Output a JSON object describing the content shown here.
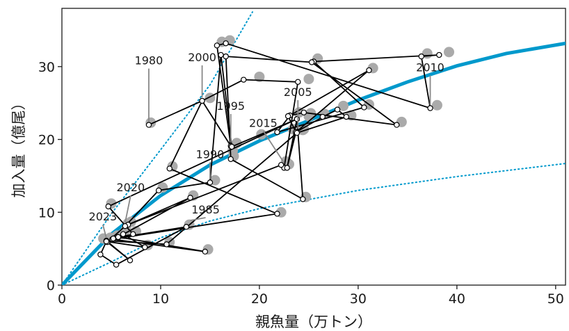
{
  "chart_data": {
    "type": "scatter",
    "xlabel": "親魚量（万トン）",
    "ylabel": "加入量（億尾）",
    "xlim": [
      0,
      51
    ],
    "ylim": [
      0,
      38
    ],
    "x_ticks": [
      0,
      10,
      20,
      30,
      40,
      50
    ],
    "y_ticks": [
      0,
      10,
      20,
      30
    ],
    "grid": false,
    "colors": {
      "fit_curve": "#0099cc",
      "prediction_points": "#aaaaaa",
      "trajectory": "#000000"
    },
    "fit_curve": {
      "points": [
        [
          0,
          0
        ],
        [
          5,
          7.0
        ],
        [
          10,
          12.3
        ],
        [
          15,
          16.5
        ],
        [
          20,
          19.8
        ],
        [
          25,
          22.6
        ],
        [
          30,
          25.4
        ],
        [
          35,
          27.9
        ],
        [
          40,
          30.1
        ],
        [
          45,
          31.8
        ],
        [
          51,
          33.2
        ]
      ]
    },
    "upper_bound": {
      "points": [
        [
          0,
          0
        ],
        [
          5,
          9.8
        ],
        [
          10,
          18.6
        ],
        [
          15,
          27.5
        ],
        [
          19.3,
          37.5
        ]
      ]
    },
    "lower_bound": {
      "points": [
        [
          0,
          0
        ],
        [
          5,
          3.2
        ],
        [
          10,
          6.5
        ],
        [
          15,
          8.8
        ],
        [
          20,
          10.5
        ],
        [
          30,
          13.0
        ],
        [
          40,
          14.9
        ],
        [
          51,
          16.7
        ]
      ]
    },
    "series": [
      {
        "points": [
          [
            8.8,
            22.0
          ],
          [
            14.2,
            25.3
          ],
          [
            18.4,
            28.2
          ],
          [
            23.9,
            27.9
          ],
          [
            22.5,
            16.1
          ],
          [
            22.2,
            16.5
          ],
          [
            6.7,
            8.3
          ],
          [
            13.0,
            12.0
          ],
          [
            5.7,
            6.6
          ],
          [
            14.5,
            4.6
          ],
          [
            5.1,
            6.3
          ],
          [
            21.8,
            9.8
          ],
          [
            10.9,
            16.0
          ],
          [
            14.2,
            25.3
          ],
          [
            17.1,
            19.1
          ],
          [
            15.7,
            32.9
          ],
          [
            16.6,
            33.2
          ],
          [
            37.3,
            24.3
          ],
          [
            36.4,
            31.4
          ],
          [
            38.2,
            31.6
          ],
          [
            25.5,
            30.7
          ],
          [
            30.6,
            24.4
          ],
          [
            21.8,
            21.0
          ],
          [
            23.1,
            23.3
          ],
          [
            31.1,
            29.5
          ],
          [
            23.7,
            21.0
          ],
          [
            22.9,
            23.2
          ],
          [
            24.5,
            23.7
          ],
          [
            33.9,
            22.0
          ],
          [
            25.3,
            30.6
          ],
          [
            16.6,
            31.4
          ],
          [
            17.1,
            17.3
          ],
          [
            24.4,
            11.8
          ],
          [
            23.8,
            22.8
          ],
          [
            22.8,
            16.1
          ],
          [
            23.7,
            21.0
          ],
          [
            26.4,
            23.1
          ],
          [
            27.9,
            24.1
          ],
          [
            28.8,
            23.1
          ],
          [
            23.8,
            20.9
          ],
          [
            10.6,
            5.6
          ],
          [
            4.5,
            6.1
          ],
          [
            6.9,
            3.4
          ],
          [
            4.6,
            5.9
          ],
          [
            6.4,
            8.1
          ],
          [
            9.8,
            13.0
          ],
          [
            15.0,
            14.1
          ],
          [
            16.1,
            31.6
          ],
          [
            17.2,
            19.0
          ],
          [
            23.8,
            22.8
          ],
          [
            4.7,
            10.8
          ],
          [
            7.2,
            7.0
          ],
          [
            5.2,
            6.4
          ],
          [
            12.6,
            8.0
          ],
          [
            5.5,
            2.8
          ],
          [
            3.9,
            4.2
          ],
          [
            4.5,
            6.0
          ],
          [
            8.4,
            5.2
          ],
          [
            6.2,
            7.0
          ]
        ]
      }
    ],
    "predicted_points": [
      [
        9.0,
        22.3
      ],
      [
        15.0,
        25.7
      ],
      [
        20.0,
        28.6
      ],
      [
        25.0,
        28.3
      ],
      [
        23.0,
        16.6
      ],
      [
        22.7,
        17.0
      ],
      [
        7.0,
        8.7
      ],
      [
        13.3,
        12.3
      ],
      [
        6.2,
        7.0
      ],
      [
        14.8,
        4.9
      ],
      [
        5.5,
        6.7
      ],
      [
        22.2,
        10.0
      ],
      [
        11.2,
        16.3
      ],
      [
        17.3,
        18.5
      ],
      [
        16.2,
        33.4
      ],
      [
        17.0,
        33.6
      ],
      [
        38.0,
        24.7
      ],
      [
        37.0,
        31.8
      ],
      [
        39.2,
        32.0
      ],
      [
        25.9,
        31.1
      ],
      [
        31.1,
        24.8
      ],
      [
        24.5,
        21.4
      ],
      [
        24.0,
        23.7
      ],
      [
        31.5,
        29.8
      ],
      [
        25.2,
        23.6
      ],
      [
        34.4,
        22.4
      ],
      [
        24.4,
        21.3
      ],
      [
        25.0,
        23.2
      ],
      [
        26.6,
        23.5
      ],
      [
        28.5,
        24.6
      ],
      [
        29.3,
        23.3
      ],
      [
        10.9,
        5.9
      ],
      [
        4.9,
        6.5
      ],
      [
        4.2,
        6.4
      ],
      [
        6.7,
        8.5
      ],
      [
        10.2,
        13.4
      ],
      [
        15.5,
        14.4
      ],
      [
        17.7,
        19.5
      ],
      [
        24.7,
        12.1
      ],
      [
        5.0,
        11.2
      ],
      [
        7.5,
        7.4
      ],
      [
        5.6,
        6.8
      ],
      [
        12.9,
        8.3
      ],
      [
        8.7,
        5.5
      ],
      [
        6.5,
        7.6
      ],
      [
        23.4,
        21.4
      ],
      [
        17.4,
        17.7
      ],
      [
        20.2,
        20.7
      ]
    ],
    "annotations": [
      {
        "text": "1980",
        "at": [
          8.8,
          22.0
        ]
      },
      {
        "text": "1985",
        "at": [
          13.0,
          8.4
        ]
      },
      {
        "text": "1990",
        "at": [
          15.0,
          14.1
        ]
      },
      {
        "text": "1995",
        "at": [
          17.1,
          19.1
        ]
      },
      {
        "text": "2000",
        "at": [
          14.2,
          25.3
        ]
      },
      {
        "text": "2005",
        "at": [
          23.9,
          21.0
        ]
      },
      {
        "text": "2010",
        "at": [
          37.3,
          24.3
        ]
      },
      {
        "text": "2015",
        "at": [
          22.5,
          16.3
        ]
      },
      {
        "text": "2020",
        "at": [
          6.4,
          8.1
        ]
      },
      {
        "text": "2023",
        "at": [
          4.5,
          6.0
        ]
      }
    ]
  }
}
